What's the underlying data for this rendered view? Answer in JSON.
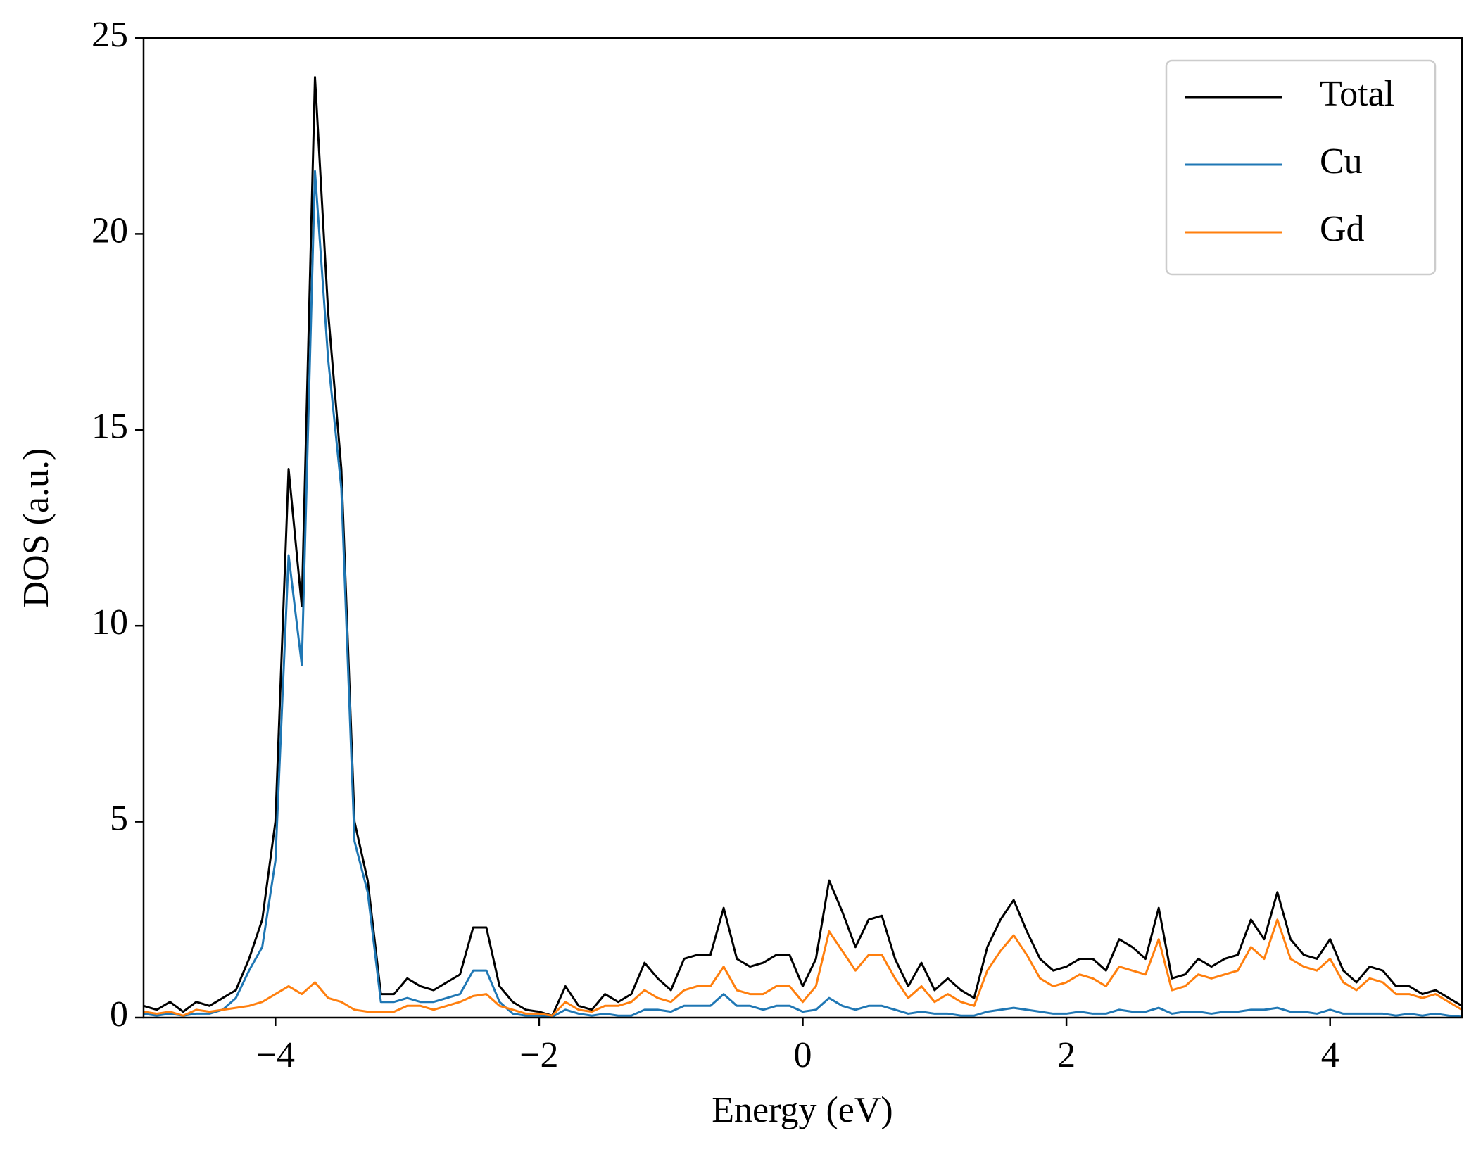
{
  "chart_data": {
    "type": "line",
    "xlabel": "Energy (eV)",
    "ylabel": "DOS (a.u.)",
    "x": [
      -5.0,
      -4.9,
      -4.8,
      -4.7,
      -4.6,
      -4.5,
      -4.4,
      -4.3,
      -4.2,
      -4.1,
      -4.0,
      -3.9,
      -3.8,
      -3.7,
      -3.6,
      -3.5,
      -3.4,
      -3.3,
      -3.2,
      -3.1,
      -3.0,
      -2.9,
      -2.8,
      -2.7,
      -2.6,
      -2.5,
      -2.4,
      -2.3,
      -2.2,
      -2.1,
      -2.0,
      -1.9,
      -1.8,
      -1.7,
      -1.6,
      -1.5,
      -1.4,
      -1.3,
      -1.2,
      -1.1,
      -1.0,
      -0.9,
      -0.8,
      -0.7,
      -0.6,
      -0.5,
      -0.4,
      -0.3,
      -0.2,
      -0.1,
      0.0,
      0.1,
      0.2,
      0.3,
      0.4,
      0.5,
      0.6,
      0.7,
      0.8,
      0.9,
      1.0,
      1.1,
      1.2,
      1.3,
      1.4,
      1.5,
      1.6,
      1.7,
      1.8,
      1.9,
      2.0,
      2.1,
      2.2,
      2.3,
      2.4,
      2.5,
      2.6,
      2.7,
      2.8,
      2.9,
      3.0,
      3.1,
      3.2,
      3.3,
      3.4,
      3.5,
      3.6,
      3.7,
      3.8,
      3.9,
      4.0,
      4.1,
      4.2,
      4.3,
      4.4,
      4.5,
      4.6,
      4.7,
      4.8,
      4.9,
      5.0
    ],
    "series": [
      {
        "name": "Total",
        "color": "#000000",
        "values": [
          0.3,
          0.2,
          0.4,
          0.15,
          0.4,
          0.3,
          0.5,
          0.7,
          1.5,
          2.5,
          5.0,
          14.0,
          10.5,
          24.0,
          18.0,
          14.0,
          5.0,
          3.5,
          0.6,
          0.6,
          1.0,
          0.8,
          0.7,
          0.9,
          1.1,
          2.3,
          2.3,
          0.8,
          0.4,
          0.2,
          0.15,
          0.05,
          0.8,
          0.3,
          0.2,
          0.6,
          0.4,
          0.6,
          1.4,
          1.0,
          0.7,
          1.5,
          1.6,
          1.6,
          2.8,
          1.5,
          1.3,
          1.4,
          1.6,
          1.6,
          0.8,
          1.5,
          3.5,
          2.7,
          1.8,
          2.5,
          2.6,
          1.5,
          0.8,
          1.4,
          0.7,
          1.0,
          0.7,
          0.5,
          1.8,
          2.5,
          3.0,
          2.2,
          1.5,
          1.2,
          1.3,
          1.5,
          1.5,
          1.2,
          2.0,
          1.8,
          1.5,
          2.8,
          1.0,
          1.1,
          1.5,
          1.3,
          1.5,
          1.6,
          2.5,
          2.0,
          3.2,
          2.0,
          1.6,
          1.5,
          2.0,
          1.2,
          0.9,
          1.3,
          1.2,
          0.8,
          0.8,
          0.6,
          0.7,
          0.5,
          0.3
        ]
      },
      {
        "name": "Cu",
        "color": "#1f77b4",
        "values": [
          0.1,
          0.05,
          0.1,
          0.05,
          0.1,
          0.1,
          0.2,
          0.5,
          1.2,
          1.8,
          4.0,
          11.8,
          9.0,
          21.6,
          16.8,
          13.5,
          4.5,
          3.2,
          0.4,
          0.4,
          0.5,
          0.4,
          0.4,
          0.5,
          0.6,
          1.2,
          1.2,
          0.4,
          0.1,
          0.05,
          0.05,
          0.02,
          0.2,
          0.1,
          0.05,
          0.1,
          0.05,
          0.05,
          0.2,
          0.2,
          0.15,
          0.3,
          0.3,
          0.3,
          0.6,
          0.3,
          0.3,
          0.2,
          0.3,
          0.3,
          0.15,
          0.2,
          0.5,
          0.3,
          0.2,
          0.3,
          0.3,
          0.2,
          0.1,
          0.15,
          0.1,
          0.1,
          0.05,
          0.05,
          0.15,
          0.2,
          0.25,
          0.2,
          0.15,
          0.1,
          0.1,
          0.15,
          0.1,
          0.1,
          0.2,
          0.15,
          0.15,
          0.25,
          0.1,
          0.15,
          0.15,
          0.1,
          0.15,
          0.15,
          0.2,
          0.2,
          0.25,
          0.15,
          0.15,
          0.1,
          0.2,
          0.1,
          0.1,
          0.1,
          0.1,
          0.05,
          0.1,
          0.05,
          0.1,
          0.05,
          0.02
        ]
      },
      {
        "name": "Gd",
        "color": "#ff7f0e",
        "values": [
          0.15,
          0.1,
          0.15,
          0.05,
          0.2,
          0.15,
          0.2,
          0.25,
          0.3,
          0.4,
          0.6,
          0.8,
          0.6,
          0.9,
          0.5,
          0.4,
          0.2,
          0.15,
          0.15,
          0.15,
          0.3,
          0.3,
          0.2,
          0.3,
          0.4,
          0.55,
          0.6,
          0.3,
          0.2,
          0.1,
          0.1,
          0.05,
          0.4,
          0.2,
          0.15,
          0.3,
          0.3,
          0.4,
          0.7,
          0.5,
          0.4,
          0.7,
          0.8,
          0.8,
          1.3,
          0.7,
          0.6,
          0.6,
          0.8,
          0.8,
          0.4,
          0.8,
          2.2,
          1.7,
          1.2,
          1.6,
          1.6,
          1.0,
          0.5,
          0.8,
          0.4,
          0.6,
          0.4,
          0.3,
          1.2,
          1.7,
          2.1,
          1.6,
          1.0,
          0.8,
          0.9,
          1.1,
          1.0,
          0.8,
          1.3,
          1.2,
          1.1,
          2.0,
          0.7,
          0.8,
          1.1,
          1.0,
          1.1,
          1.2,
          1.8,
          1.5,
          2.5,
          1.5,
          1.3,
          1.2,
          1.5,
          0.9,
          0.7,
          1.0,
          0.9,
          0.6,
          0.6,
          0.5,
          0.6,
          0.4,
          0.2
        ]
      }
    ],
    "xlim": [
      -5,
      5
    ],
    "xticks": [
      {
        "value": -4,
        "label": "−4"
      },
      {
        "value": -2,
        "label": "−2"
      },
      0,
      2,
      4
    ],
    "ylim": [
      0,
      25
    ],
    "yticks": [
      0,
      5,
      10,
      15,
      20,
      25
    ],
    "grid": false,
    "legend": "upper right"
  }
}
